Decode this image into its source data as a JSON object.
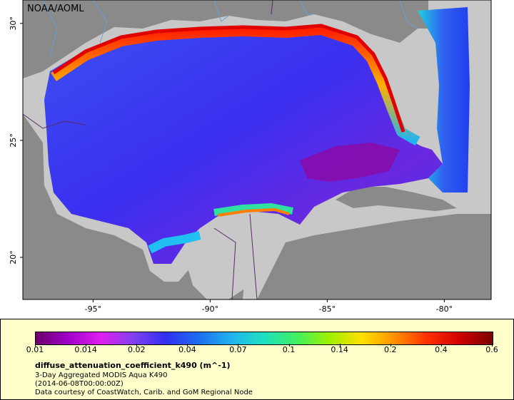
{
  "attribution": "NOAA/AOML",
  "axes": {
    "lat_labels": [
      {
        "text": "30°",
        "lat": 30
      },
      {
        "text": "25°",
        "lat": 25
      },
      {
        "text": "20°",
        "lat": 20
      }
    ],
    "lon_labels": [
      {
        "text": "-95°",
        "lon": -95
      },
      {
        "text": "-90°",
        "lon": -90
      },
      {
        "text": "-85°",
        "lon": -85
      },
      {
        "text": "-80°",
        "lon": -80
      }
    ]
  },
  "colors": {
    "land": "#8a8a8a",
    "foreign_land": "#c8c8c8",
    "coast_high": "#d00000",
    "open_gulf": "#3a2ff0",
    "purple_patch": "#8a0aa8",
    "rivers": "#6a9fd8",
    "borders": "#5a2a6a"
  },
  "colorbar": {
    "stops": [
      "#6a006a",
      "#a000c8",
      "#e020f0",
      "#8040f0",
      "#3030f0",
      "#1e6ef0",
      "#20b4f0",
      "#20e0c0",
      "#40f060",
      "#a0f000",
      "#ffe000",
      "#ff9000",
      "#ff3000",
      "#d00000",
      "#7a0000"
    ],
    "ticks": [
      "0.01",
      "0.014",
      "0.02",
      "0.04",
      "0.07",
      "0.1",
      "0.14",
      "0.2",
      "0.4",
      "0.6"
    ]
  },
  "legend": {
    "title": "diffuse_attenuation_coefficient_k490 (m^-1)",
    "line1": "3-Day Aggregated MODIS Aqua K490",
    "line2": "(2014-06-08T00:00:00Z)",
    "line3": "Data courtesy of CoastWatch, Carib. and GoM Regional Node"
  }
}
